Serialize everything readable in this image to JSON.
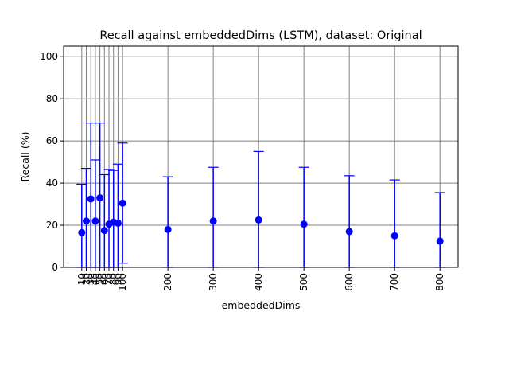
{
  "chart_data": {
    "type": "scatter",
    "title": "Recall against embeddedDims (LSTM), dataset: Original",
    "xlabel": "embeddedDims",
    "ylabel": "Recall (%)",
    "xticks": [
      10,
      20,
      30,
      40,
      50,
      60,
      70,
      80,
      90,
      100,
      200,
      300,
      400,
      500,
      600,
      700,
      800
    ],
    "xtick_labels": [
      "10",
      "20",
      "30",
      "40",
      "50",
      "60",
      "70",
      "80",
      "90",
      "100",
      "200",
      "300",
      "400",
      "500",
      "600",
      "700",
      "800"
    ],
    "yticks": [
      0,
      20,
      40,
      60,
      80,
      100
    ],
    "ylim": [
      0,
      105
    ],
    "xlim": [
      -30,
      840
    ],
    "grid": true,
    "marker_color": "#0000ff",
    "grid_color": "#808080",
    "points": [
      {
        "x": 10,
        "y": 16.5,
        "err_low": 0,
        "err_high": 39.5
      },
      {
        "x": 20,
        "y": 22.0,
        "err_low": 0,
        "err_high": 47.0
      },
      {
        "x": 30,
        "y": 32.5,
        "err_low": 0,
        "err_high": 68.5
      },
      {
        "x": 40,
        "y": 22.0,
        "err_low": 0,
        "err_high": 51.0
      },
      {
        "x": 50,
        "y": 33.0,
        "err_low": 0,
        "err_high": 68.5
      },
      {
        "x": 60,
        "y": 17.5,
        "err_low": 0,
        "err_high": 44.0
      },
      {
        "x": 70,
        "y": 20.5,
        "err_low": 0,
        "err_high": 46.5
      },
      {
        "x": 80,
        "y": 21.5,
        "err_low": 0,
        "err_high": 46.0
      },
      {
        "x": 90,
        "y": 21.0,
        "err_low": 0,
        "err_high": 49.0
      },
      {
        "x": 100,
        "y": 30.5,
        "err_low": 2.0,
        "err_high": 59.0
      },
      {
        "x": 200,
        "y": 18.0,
        "err_low": 0,
        "err_high": 43.0
      },
      {
        "x": 300,
        "y": 22.0,
        "err_low": 0,
        "err_high": 47.5
      },
      {
        "x": 400,
        "y": 22.5,
        "err_low": 0,
        "err_high": 55.0
      },
      {
        "x": 500,
        "y": 20.5,
        "err_low": 0,
        "err_high": 47.5
      },
      {
        "x": 600,
        "y": 17.0,
        "err_low": 0,
        "err_high": 43.5
      },
      {
        "x": 700,
        "y": 15.0,
        "err_low": 0,
        "err_high": 41.5
      },
      {
        "x": 800,
        "y": 12.5,
        "err_low": 0,
        "err_high": 35.5
      }
    ]
  }
}
